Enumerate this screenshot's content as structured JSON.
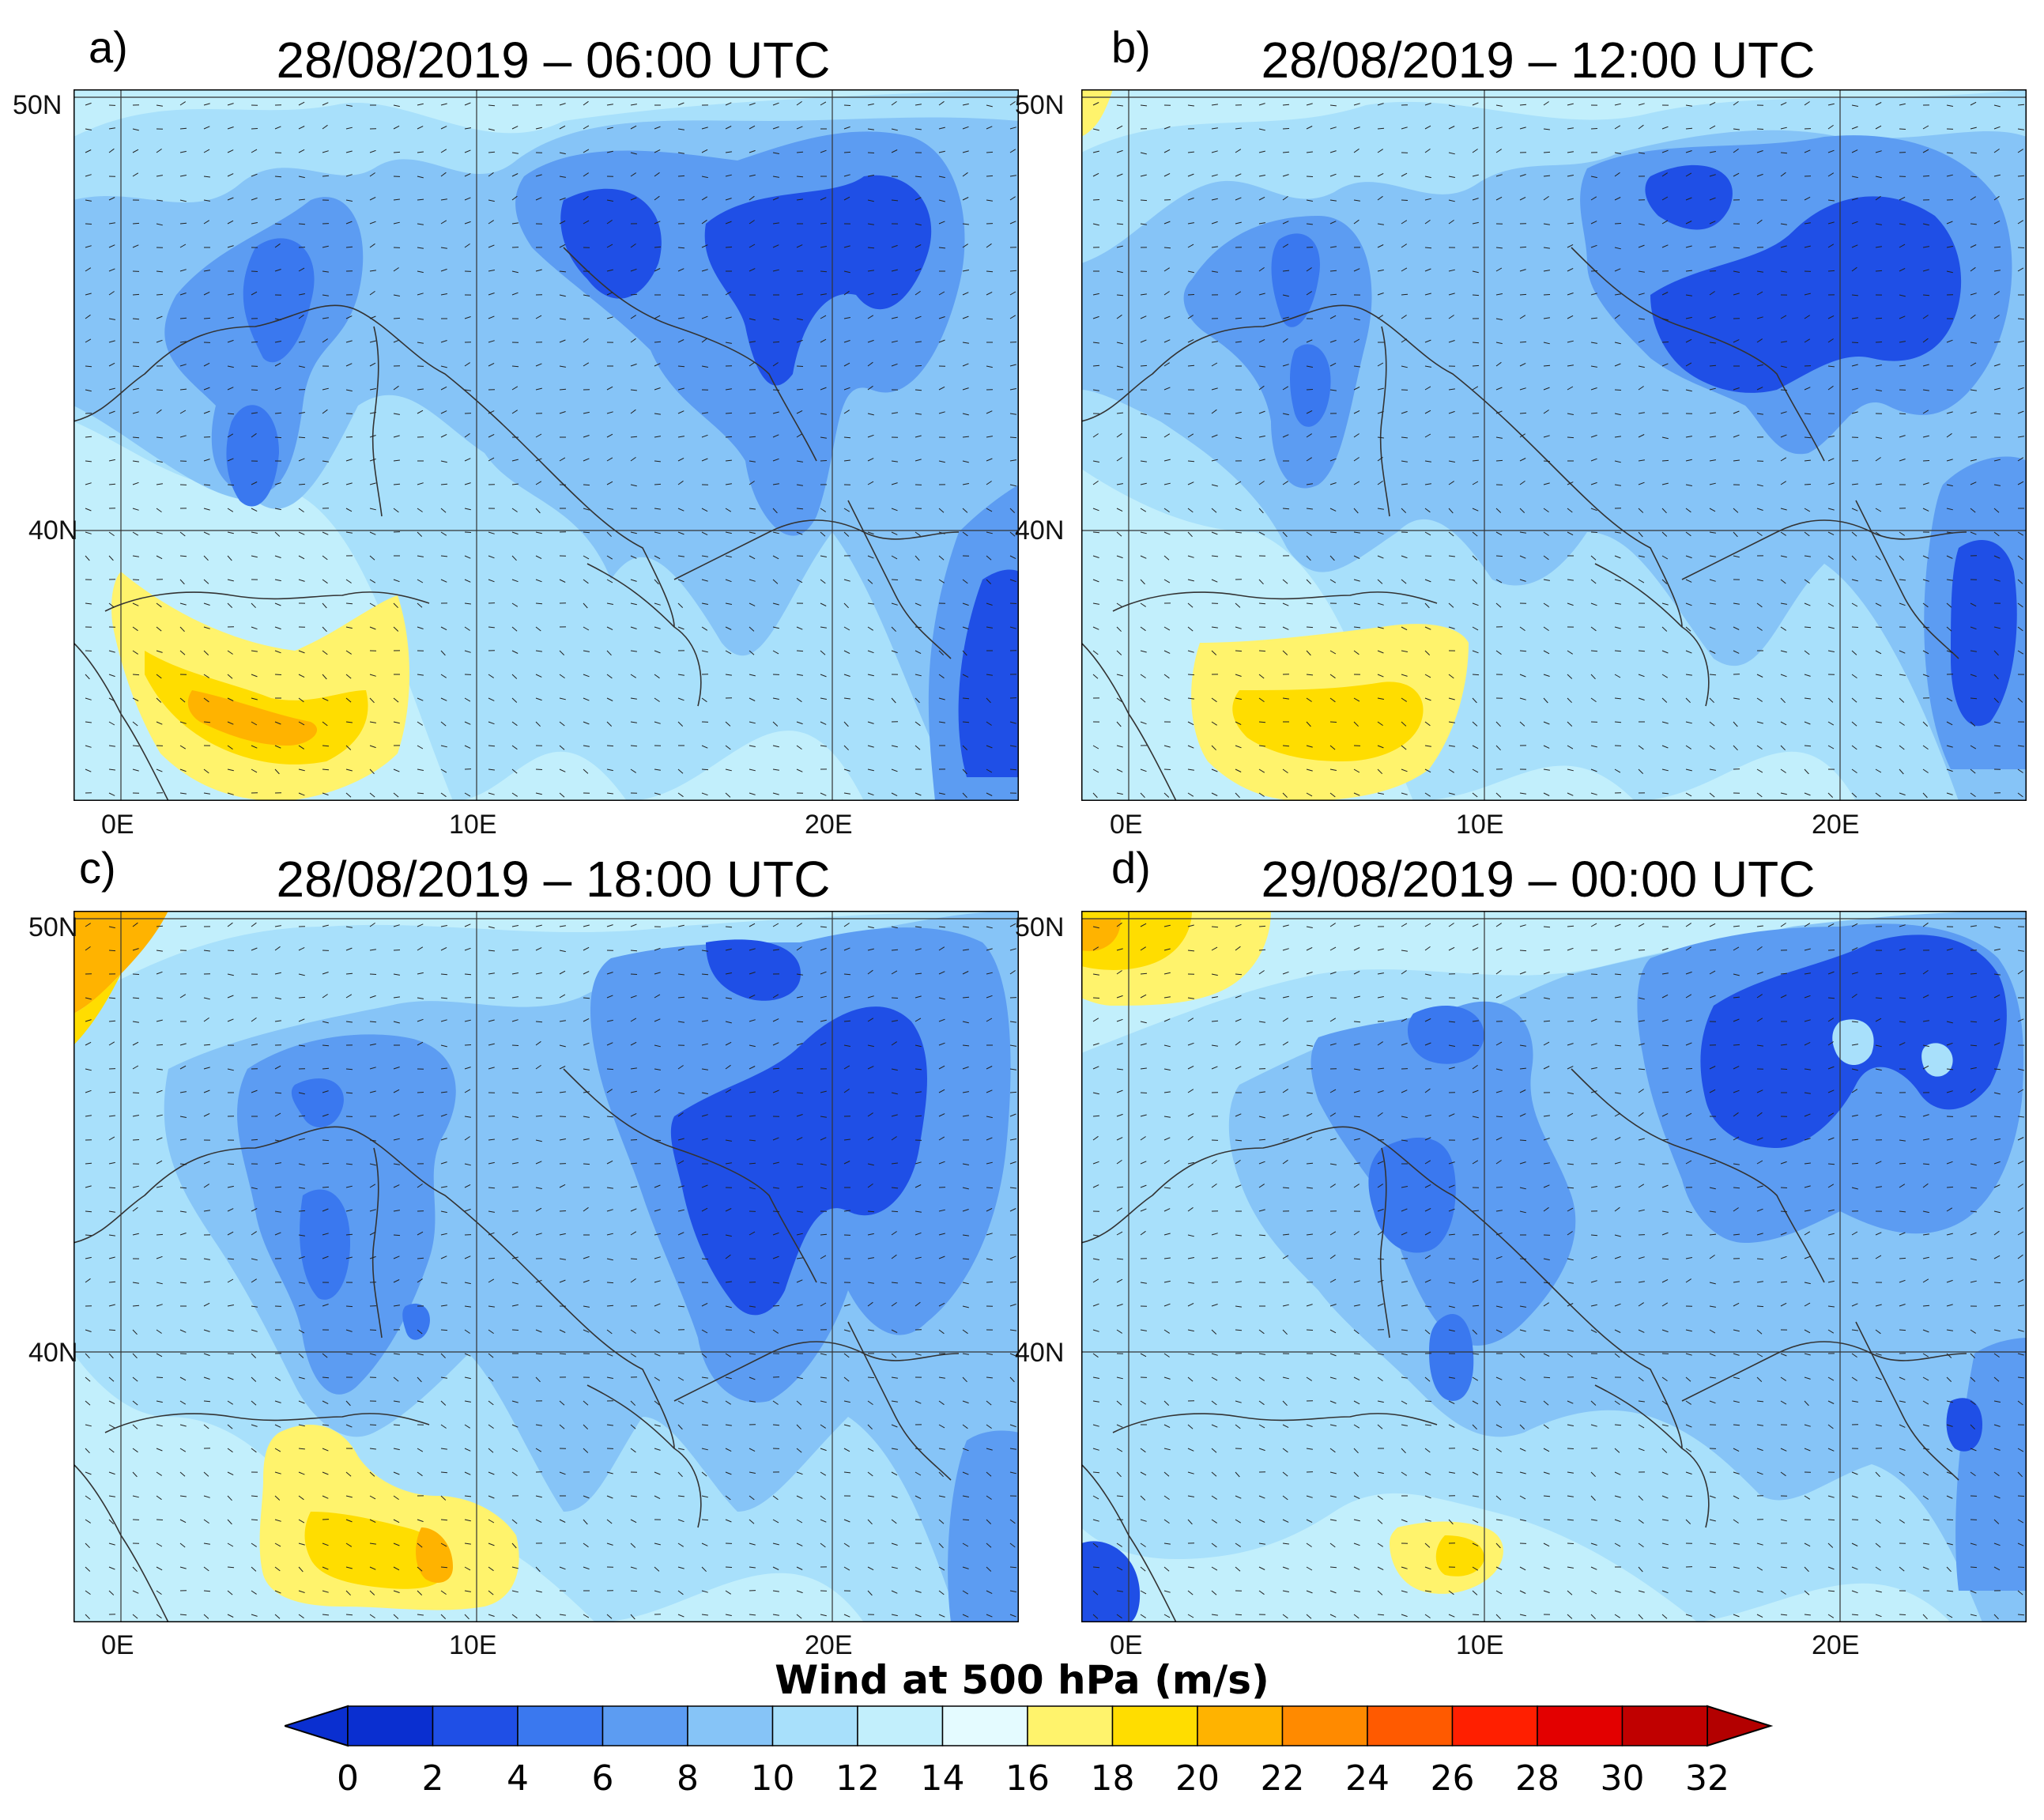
{
  "panels": [
    {
      "letter": "a)",
      "title": "28/08/2019 – 06:00 UTC"
    },
    {
      "letter": "b)",
      "title": "28/08/2019 – 12:00 UTC"
    },
    {
      "letter": "c)",
      "title": "28/08/2019 – 18:00 UTC"
    },
    {
      "letter": "d)",
      "title": "29/08/2019 – 00:00 UTC"
    }
  ],
  "axes": {
    "lat_labels": [
      "50N",
      "40N"
    ],
    "lon_labels": [
      "0E",
      "10E",
      "20E"
    ]
  },
  "colorbar": {
    "title": "Wind at 500 hPa (m/s)",
    "ticks": [
      "0",
      "2",
      "4",
      "6",
      "8",
      "10",
      "12",
      "14",
      "16",
      "18",
      "20",
      "22",
      "24",
      "26",
      "28",
      "30",
      "32"
    ],
    "colors": [
      "#0a2fd0",
      "#1f4fe6",
      "#3a78ef",
      "#5c9cf2",
      "#86c4f7",
      "#a8e0fb",
      "#c2effc",
      "#e4fbff",
      "#fff36c",
      "#ffdd00",
      "#ffb300",
      "#ff8a00",
      "#ff5a00",
      "#ff1f00",
      "#e30000",
      "#c00000"
    ],
    "under_color": "#0a2fd0",
    "over_color": "#b30000"
  },
  "map_colors": {
    "background": "#a8e0fb",
    "coast": "#333333"
  }
}
